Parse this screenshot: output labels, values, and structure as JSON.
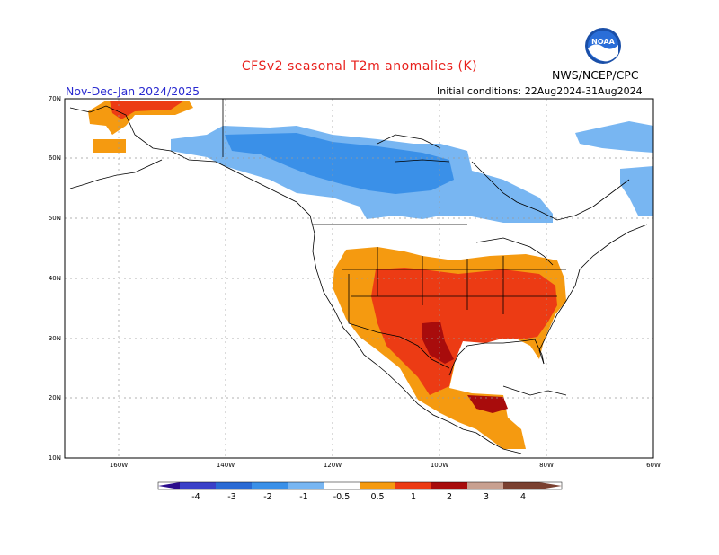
{
  "header": {
    "title": "CFSv2 seasonal T2m anomalies (K)",
    "season": "Nov-Dec-Jan 2024/2025",
    "initial_conditions": "Initial conditions: 22Aug2024-31Aug2024",
    "agency": "NWS/NCEP/CPC",
    "logo_text": "NOAA",
    "logo_icon": "noaa-logo-icon"
  },
  "axes": {
    "lat_labels": [
      "70N",
      "60N",
      "50N",
      "40N",
      "30N",
      "20N",
      "10N"
    ],
    "lon_labels": [
      "160W",
      "140W",
      "120W",
      "100W",
      "80W",
      "60W"
    ]
  },
  "colorbar": {
    "ticks": [
      "-4",
      "-3",
      "-2",
      "-1",
      "-0.5",
      "0.5",
      "1",
      "2",
      "3",
      "4"
    ],
    "colors": {
      "lt_-4": "#2a0c8c",
      "-4_-3": "#3a40c8",
      "-3_-2": "#2a6ad4",
      "-2_-1": "#3a90e8",
      "-1_-0.5": "#78b6f2",
      "-0.5_0.5": "#ffffff",
      "0.5_1": "#f59a10",
      "1_2": "#ec3b14",
      "2_3": "#a80c0c",
      "3_4": "#c8a090",
      "gt_4": "#7a4030"
    }
  }
}
